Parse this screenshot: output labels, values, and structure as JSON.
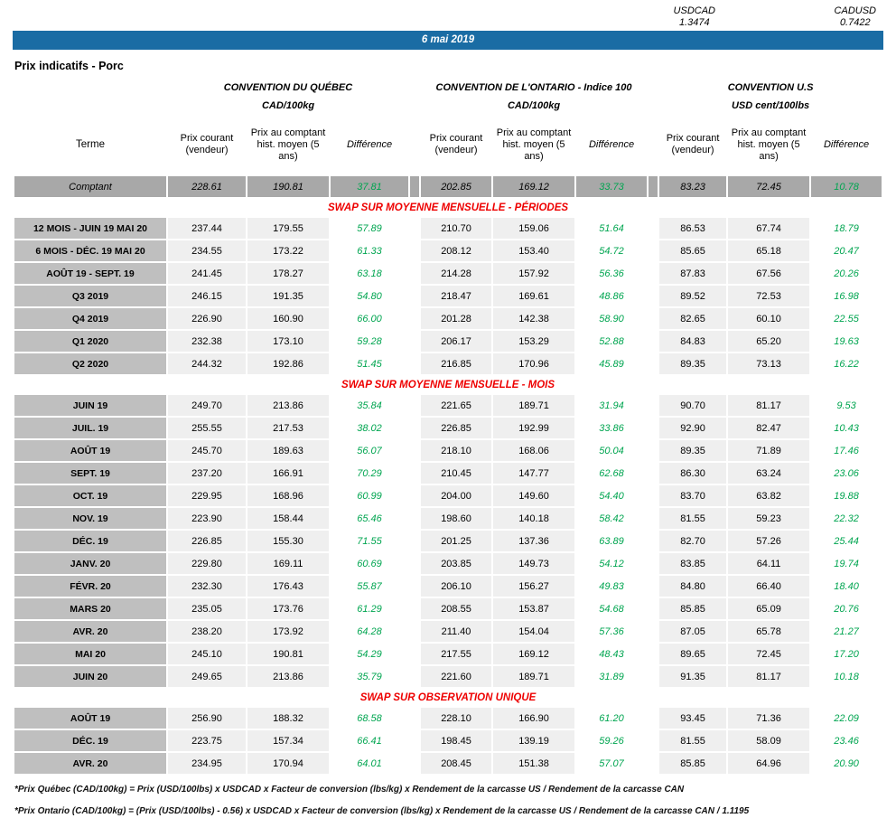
{
  "fx": {
    "usdcad_label": "USDCAD",
    "usdcad_value": "1.3474",
    "cadusd_label": "CADUSD",
    "cadusd_value": "0.7422"
  },
  "date_banner": "6 mai 2019",
  "page_title": "Prix indicatifs - Porc",
  "table": {
    "groups": [
      {
        "name": "CONVENTION DU QUÉBEC",
        "unit": "CAD/100kg"
      },
      {
        "name": "CONVENTION DE L'ONTARIO - Indice 100",
        "unit": "CAD/100kg"
      },
      {
        "name": "CONVENTION U.S",
        "unit": "USD cent/100lbs"
      }
    ],
    "headers": {
      "terme": "Terme",
      "prix_courant": "Prix courant (vendeur)",
      "prix_comptant": "Prix au comptant hist. moyen (5 ans)",
      "difference": "Différence"
    },
    "comptant": {
      "label": "Comptant",
      "values": [
        "228.61",
        "190.81",
        "37.81",
        "202.85",
        "169.12",
        "33.73",
        "83.23",
        "72.45",
        "10.78"
      ]
    },
    "sections": [
      {
        "title": "SWAP SUR MOYENNE MENSUELLE - PÉRIODES",
        "rows": [
          {
            "label": "12 MOIS -  JUIN 19 MAI 20",
            "values": [
              "237.44",
              "179.55",
              "57.89",
              "210.70",
              "159.06",
              "51.64",
              "86.53",
              "67.74",
              "18.79"
            ]
          },
          {
            "label": "6 MOIS -  DÉC. 19 MAI 20",
            "values": [
              "234.55",
              "173.22",
              "61.33",
              "208.12",
              "153.40",
              "54.72",
              "85.65",
              "65.18",
              "20.47"
            ]
          },
          {
            "label": "AOÛT 19 -  SEPT. 19",
            "values": [
              "241.45",
              "178.27",
              "63.18",
              "214.28",
              "157.92",
              "56.36",
              "87.83",
              "67.56",
              "20.26"
            ]
          },
          {
            "label": "Q3 2019",
            "values": [
              "246.15",
              "191.35",
              "54.80",
              "218.47",
              "169.61",
              "48.86",
              "89.52",
              "72.53",
              "16.98"
            ]
          },
          {
            "label": "Q4 2019",
            "values": [
              "226.90",
              "160.90",
              "66.00",
              "201.28",
              "142.38",
              "58.90",
              "82.65",
              "60.10",
              "22.55"
            ]
          },
          {
            "label": "Q1 2020",
            "values": [
              "232.38",
              "173.10",
              "59.28",
              "206.17",
              "153.29",
              "52.88",
              "84.83",
              "65.20",
              "19.63"
            ]
          },
          {
            "label": "Q2 2020",
            "values": [
              "244.32",
              "192.86",
              "51.45",
              "216.85",
              "170.96",
              "45.89",
              "89.35",
              "73.13",
              "16.22"
            ]
          }
        ]
      },
      {
        "title": "SWAP SUR MOYENNE MENSUELLE - MOIS",
        "rows": [
          {
            "label": "JUIN 19",
            "values": [
              "249.70",
              "213.86",
              "35.84",
              "221.65",
              "189.71",
              "31.94",
              "90.70",
              "81.17",
              "9.53"
            ]
          },
          {
            "label": "JUIL. 19",
            "values": [
              "255.55",
              "217.53",
              "38.02",
              "226.85",
              "192.99",
              "33.86",
              "92.90",
              "82.47",
              "10.43"
            ]
          },
          {
            "label": "AOÛT 19",
            "values": [
              "245.70",
              "189.63",
              "56.07",
              "218.10",
              "168.06",
              "50.04",
              "89.35",
              "71.89",
              "17.46"
            ]
          },
          {
            "label": "SEPT. 19",
            "values": [
              "237.20",
              "166.91",
              "70.29",
              "210.45",
              "147.77",
              "62.68",
              "86.30",
              "63.24",
              "23.06"
            ]
          },
          {
            "label": "OCT. 19",
            "values": [
              "229.95",
              "168.96",
              "60.99",
              "204.00",
              "149.60",
              "54.40",
              "83.70",
              "63.82",
              "19.88"
            ]
          },
          {
            "label": "NOV. 19",
            "values": [
              "223.90",
              "158.44",
              "65.46",
              "198.60",
              "140.18",
              "58.42",
              "81.55",
              "59.23",
              "22.32"
            ]
          },
          {
            "label": "DÉC. 19",
            "values": [
              "226.85",
              "155.30",
              "71.55",
              "201.25",
              "137.36",
              "63.89",
              "82.70",
              "57.26",
              "25.44"
            ]
          },
          {
            "label": "JANV. 20",
            "values": [
              "229.80",
              "169.11",
              "60.69",
              "203.85",
              "149.73",
              "54.12",
              "83.85",
              "64.11",
              "19.74"
            ]
          },
          {
            "label": "FÉVR. 20",
            "values": [
              "232.30",
              "176.43",
              "55.87",
              "206.10",
              "156.27",
              "49.83",
              "84.80",
              "66.40",
              "18.40"
            ]
          },
          {
            "label": "MARS 20",
            "values": [
              "235.05",
              "173.76",
              "61.29",
              "208.55",
              "153.87",
              "54.68",
              "85.85",
              "65.09",
              "20.76"
            ]
          },
          {
            "label": "AVR. 20",
            "values": [
              "238.20",
              "173.92",
              "64.28",
              "211.40",
              "154.04",
              "57.36",
              "87.05",
              "65.78",
              "21.27"
            ]
          },
          {
            "label": "MAI 20",
            "values": [
              "245.10",
              "190.81",
              "54.29",
              "217.55",
              "169.12",
              "48.43",
              "89.65",
              "72.45",
              "17.20"
            ]
          },
          {
            "label": "JUIN 20",
            "values": [
              "249.65",
              "213.86",
              "35.79",
              "221.60",
              "189.71",
              "31.89",
              "91.35",
              "81.17",
              "10.18"
            ]
          }
        ]
      },
      {
        "title": "SWAP SUR OBSERVATION UNIQUE",
        "rows": [
          {
            "label": "AOÛT 19",
            "values": [
              "256.90",
              "188.32",
              "68.58",
              "228.10",
              "166.90",
              "61.20",
              "93.45",
              "71.36",
              "22.09"
            ]
          },
          {
            "label": "DÉC. 19",
            "values": [
              "223.75",
              "157.34",
              "66.41",
              "198.45",
              "139.19",
              "59.26",
              "81.55",
              "58.09",
              "23.46"
            ]
          },
          {
            "label": "AVR. 20",
            "values": [
              "234.95",
              "170.94",
              "64.01",
              "208.45",
              "151.38",
              "57.07",
              "85.85",
              "64.96",
              "20.90"
            ]
          }
        ]
      }
    ]
  },
  "footnotes": [
    "*Prix Québec (CAD/100kg) = Prix (USD/100lbs) x USDCAD x Facteur de conversion (lbs/kg) x Rendement de la carcasse US / Rendement de la carcasse CAN",
    "*Prix Ontario (CAD/100kg) = (Prix (USD/100lbs) - 0.56) x USDCAD x Facteur de conversion (lbs/kg) x Rendement de la carcasse US / Rendement de la carcasse CAN / 1.1195"
  ]
}
